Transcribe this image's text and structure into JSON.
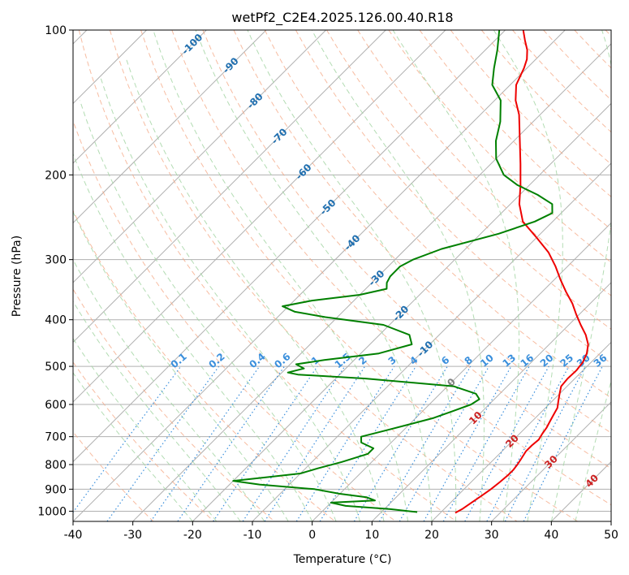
{
  "chart_data": {
    "type": "skew-t",
    "title": "wetPf2_C2E4.2025.126.00.40.R18",
    "xlabel": "Temperature (°C)",
    "ylabel": "Pressure (hPa)",
    "xlim": [
      -40,
      50
    ],
    "ylim": [
      1050,
      100
    ],
    "y_scale": "log",
    "grid": true,
    "x_ticks": [
      -40,
      -30,
      -20,
      -10,
      0,
      10,
      20,
      30,
      40,
      50
    ],
    "y_ticks": [
      100,
      200,
      300,
      400,
      500,
      600,
      700,
      800,
      900,
      1000
    ],
    "colors": {
      "temperature": "#ee0000",
      "dewpoint": "#008000",
      "isotherm": "#b0b0b0",
      "dry_adiabat": "#f4a582",
      "moist_adiabat": "#a6d6a6",
      "mixing_ratio": "#3a8fdc",
      "isotherm_label": "#1f6fb0",
      "dry_adiabat_label": "#cc2222",
      "zero_label": "#808080"
    },
    "isotherm_labels": [
      "-100",
      "-90",
      "-80",
      "-70",
      "-60",
      "-50",
      "-40",
      "-30",
      "-20",
      "-10",
      "0",
      "10",
      "20",
      "30",
      "40"
    ],
    "mixing_ratio_labels": [
      "0.1",
      "0.2",
      "0.4",
      "0.6",
      "1",
      "1.5",
      "2",
      "3",
      "4",
      "6",
      "8",
      "10",
      "13",
      "16",
      "20",
      "25",
      "30",
      "36"
    ],
    "series": [
      {
        "name": "",
        "values": [
          [
            1008,
            22.5
          ],
          [
            990,
            23.0
          ],
          [
            960,
            23.5
          ],
          [
            930,
            24.0
          ],
          [
            900,
            24.5
          ],
          [
            870,
            24.8
          ],
          [
            840,
            25.0
          ],
          [
            820,
            25.0
          ],
          [
            800,
            24.8
          ],
          [
            780,
            24.5
          ],
          [
            750,
            24.0
          ],
          [
            730,
            24.0
          ],
          [
            710,
            24.2
          ],
          [
            690,
            23.8
          ],
          [
            670,
            23.5
          ],
          [
            650,
            23.0
          ],
          [
            630,
            22.5
          ],
          [
            610,
            22.0
          ],
          [
            590,
            21.0
          ],
          [
            570,
            20.0
          ],
          [
            550,
            19.0
          ],
          [
            530,
            18.8
          ],
          [
            510,
            18.9
          ],
          [
            490,
            18.6
          ],
          [
            470,
            17.8
          ],
          [
            450,
            16.5
          ],
          [
            430,
            14.5
          ],
          [
            410,
            12.0
          ],
          [
            390,
            9.5
          ],
          [
            370,
            7.0
          ],
          [
            350,
            4.0
          ],
          [
            330,
            1.0
          ],
          [
            310,
            -2.0
          ],
          [
            290,
            -5.5
          ],
          [
            270,
            -10.0
          ],
          [
            250,
            -15.0
          ],
          [
            230,
            -18.5
          ],
          [
            210,
            -21.5
          ],
          [
            190,
            -25.0
          ],
          [
            170,
            -29.0
          ],
          [
            150,
            -33.5
          ],
          [
            140,
            -36.5
          ],
          [
            130,
            -39.0
          ],
          [
            120,
            -40.5
          ],
          [
            115,
            -41.5
          ],
          [
            110,
            -43.0
          ],
          [
            105,
            -45.0
          ],
          [
            100,
            -47.0
          ]
        ]
      },
      {
        "name": "",
        "values": [
          [
            1004,
            16.0
          ],
          [
            990,
            11.0
          ],
          [
            975,
            3.0
          ],
          [
            960,
            0.0
          ],
          [
            950,
            7.0
          ],
          [
            935,
            5.0
          ],
          [
            920,
            0.0
          ],
          [
            900,
            -5.0
          ],
          [
            880,
            -15.0
          ],
          [
            865,
            -20.0
          ],
          [
            850,
            -15.0
          ],
          [
            835,
            -10.0
          ],
          [
            815,
            -8.0
          ],
          [
            790,
            -5.0
          ],
          [
            760,
            -2.0
          ],
          [
            740,
            -2.0
          ],
          [
            720,
            -5.0
          ],
          [
            700,
            -6.0
          ],
          [
            680,
            -3.0
          ],
          [
            660,
            0.0
          ],
          [
            640,
            3.0
          ],
          [
            620,
            5.0
          ],
          [
            600,
            7.0
          ],
          [
            585,
            7.5
          ],
          [
            570,
            6.0
          ],
          [
            550,
            1.0
          ],
          [
            530,
            -15.0
          ],
          [
            520,
            -27.0
          ],
          [
            515,
            -29.0
          ],
          [
            505,
            -27.0
          ],
          [
            495,
            -29.0
          ],
          [
            485,
            -25.0
          ],
          [
            470,
            -17.0
          ],
          [
            450,
            -13.0
          ],
          [
            430,
            -15.0
          ],
          [
            410,
            -21.0
          ],
          [
            395,
            -32.0
          ],
          [
            385,
            -38.0
          ],
          [
            375,
            -41.0
          ],
          [
            365,
            -37.0
          ],
          [
            355,
            -30.0
          ],
          [
            345,
            -26.5
          ],
          [
            335,
            -27.5
          ],
          [
            325,
            -28.0
          ],
          [
            310,
            -28.0
          ],
          [
            300,
            -27.0
          ],
          [
            285,
            -24.0
          ],
          [
            265,
            -17.0
          ],
          [
            250,
            -13.0
          ],
          [
            240,
            -11.5
          ],
          [
            230,
            -13.0
          ],
          [
            220,
            -17.0
          ],
          [
            210,
            -22.0
          ],
          [
            200,
            -26.0
          ],
          [
            185,
            -30.0
          ],
          [
            170,
            -33.0
          ],
          [
            155,
            -35.5
          ],
          [
            140,
            -39.0
          ],
          [
            130,
            -43.0
          ],
          [
            120,
            -45.5
          ],
          [
            110,
            -48.0
          ],
          [
            100,
            -51.0
          ]
        ]
      }
    ]
  }
}
